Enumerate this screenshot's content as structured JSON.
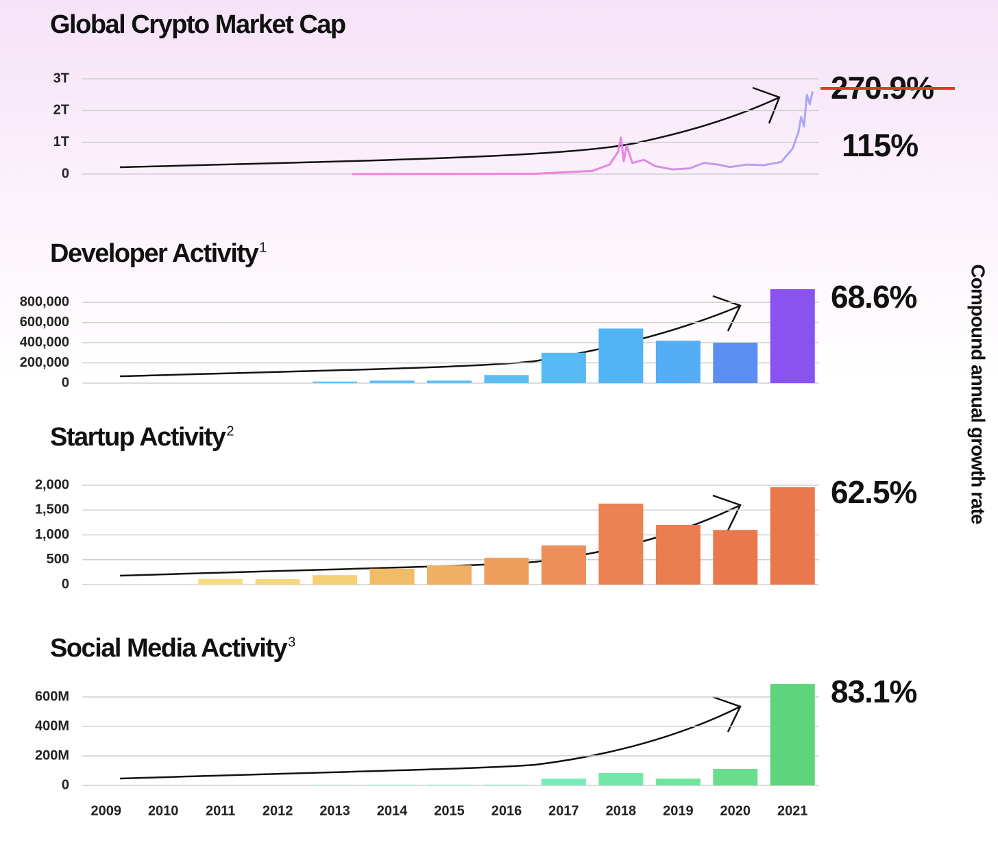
{
  "side_label": "Compound annual growth rate",
  "chart_data": [
    {
      "type": "line",
      "title": "Global Crypto Market Cap",
      "x": [
        2013.3,
        2016.5,
        2017.5,
        2017.8,
        2017.95,
        2018.0,
        2018.05,
        2018.1,
        2018.2,
        2018.4,
        2018.6,
        2018.9,
        2019.2,
        2019.45,
        2019.7,
        2019.9,
        2020.2,
        2020.5,
        2020.8,
        2021.0,
        2021.1,
        2021.15,
        2021.2,
        2021.25,
        2021.3,
        2021.35
      ],
      "values": [
        0.001,
        0.01,
        0.1,
        0.3,
        0.7,
        1.15,
        0.4,
        0.9,
        0.35,
        0.45,
        0.25,
        0.15,
        0.18,
        0.35,
        0.3,
        0.22,
        0.3,
        0.28,
        0.38,
        0.8,
        1.3,
        1.8,
        1.5,
        2.5,
        2.2,
        2.6
      ],
      "color": [
        "#f27fdf",
        "#a7a9f6"
      ],
      "xlim": [
        2008.5,
        2021.5
      ],
      "ylim": [
        0,
        3
      ],
      "yticks": [
        0,
        {
          "value": 1,
          "label": "1T"
        },
        {
          "value": 2,
          "label": "2T"
        },
        {
          "value": 3,
          "label": "3T"
        }
      ],
      "grid": true,
      "struck_annotation": "270.9%",
      "annotation": "115%"
    },
    {
      "type": "bar",
      "title": "Developer Activity",
      "title_note": "1",
      "values": [
        0,
        0,
        0,
        0,
        15000,
        25000,
        25000,
        80000,
        300000,
        540000,
        420000,
        400000,
        930000
      ],
      "colors": [
        "#5cc0f5",
        "#5cc0f5",
        "#5cc0f5",
        "#5cc0f5",
        "#5cc0f5",
        "#5cc0f5",
        "#5cc0f5",
        "#5cbdf5",
        "#57baf5",
        "#52b3f5",
        "#55aef5",
        "#5b8ef0",
        "#8a52ef"
      ],
      "ylim": [
        0,
        950000
      ],
      "yticks": [
        0,
        {
          "value": 200000,
          "label": "200,000"
        },
        {
          "value": 400000,
          "label": "400,000"
        },
        {
          "value": 600000,
          "label": "600,000"
        },
        {
          "value": 800000,
          "label": "800,000"
        }
      ],
      "grid": true,
      "annotation": "68.6%"
    },
    {
      "type": "bar",
      "title": "Startup Activity",
      "title_note": "2",
      "values": [
        0,
        0,
        110,
        110,
        190,
        320,
        390,
        540,
        790,
        1630,
        1200,
        1100,
        1960
      ],
      "colors": [
        "#f8dc80",
        "#f8dc80",
        "#f8dc80",
        "#f7d77a",
        "#f5cf72",
        "#f2bb66",
        "#f0b064",
        "#ee9e5c",
        "#ec8f58",
        "#ea8252",
        "#ea7d4f",
        "#e9784c",
        "#e9784c"
      ],
      "ylim": [
        0,
        2000
      ],
      "yticks": [
        0,
        500,
        {
          "value": 1000,
          "label": "1,000"
        },
        {
          "value": 1500,
          "label": "1,500"
        },
        {
          "value": 2000,
          "label": "2,000"
        }
      ],
      "grid": true,
      "annotation": "62.5%"
    },
    {
      "type": "bar",
      "title": "Social Media Activity",
      "title_note": "3",
      "categories": [
        "2009",
        "2010",
        "2011",
        "2012",
        "2013",
        "2014",
        "2015",
        "2016",
        "2017",
        "2018",
        "2019",
        "2020",
        "2021"
      ],
      "values": [
        0,
        0,
        0,
        0,
        3,
        5,
        5,
        5,
        46,
        84,
        46,
        112,
        688
      ],
      "colors": [
        "#80f2da",
        "#80f2da",
        "#80f2da",
        "#80f2da",
        "#80f2da",
        "#7ef2d6",
        "#7cf0d0",
        "#7aeec6",
        "#78ecb8",
        "#74e8a8",
        "#6fe49c",
        "#68de8c",
        "#5ed47c"
      ],
      "ylim": [
        0,
        700
      ],
      "yticks": [
        0,
        {
          "value": 200,
          "label": "200M"
        },
        {
          "value": 400,
          "label": "400M"
        },
        {
          "value": 600,
          "label": "600M"
        }
      ],
      "grid": true,
      "annotation": "83.1%"
    }
  ]
}
